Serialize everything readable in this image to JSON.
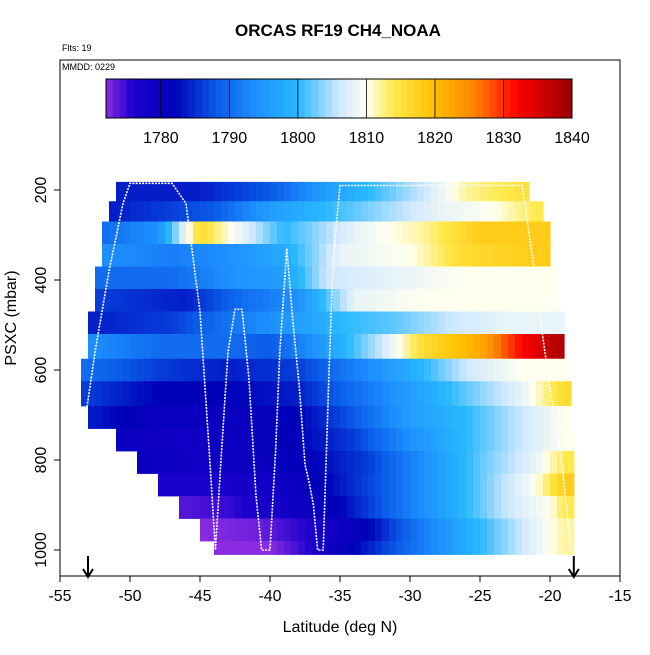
{
  "chart_data": {
    "type": "heatmap",
    "title": "ORCAS RF19 CH4_NOAA",
    "corner_labels": {
      "flights": "Flts: 19",
      "date": "MMDD: 0229"
    },
    "xlabel": "Latitude (deg N)",
    "ylabel": "PSXC (mbar)",
    "xlim": [
      -55,
      -15
    ],
    "ylim": [
      1010,
      100
    ],
    "x_ticks": [
      -55,
      -50,
      -45,
      -40,
      -35,
      -30,
      -25,
      -20,
      -15
    ],
    "y_ticks": [
      200,
      400,
      600,
      800,
      1000
    ],
    "colorbar": {
      "range": [
        1772,
        1840
      ],
      "ticks": [
        1780,
        1790,
        1800,
        1810,
        1820,
        1830,
        1840
      ],
      "stops": [
        {
          "v": 1772,
          "c": "#8a2be2"
        },
        {
          "v": 1776,
          "c": "#1a00cc"
        },
        {
          "v": 1782,
          "c": "#0000b8"
        },
        {
          "v": 1788,
          "c": "#0a5ae8"
        },
        {
          "v": 1794,
          "c": "#1e90ff"
        },
        {
          "v": 1800,
          "c": "#29b8ff"
        },
        {
          "v": 1806,
          "c": "#cfe8ff"
        },
        {
          "v": 1810,
          "c": "#fffff0"
        },
        {
          "v": 1814,
          "c": "#ffe84a"
        },
        {
          "v": 1820,
          "c": "#ffbf00"
        },
        {
          "v": 1826,
          "c": "#ff8000"
        },
        {
          "v": 1832,
          "c": "#ff0000"
        },
        {
          "v": 1840,
          "c": "#990000"
        }
      ]
    },
    "rows": [
      {
        "p1": 182,
        "p2": 225,
        "lat_min": -51,
        "lat_max": -21.5,
        "vals": [
          [
            -51,
            1784
          ],
          [
            -45,
            1784
          ],
          [
            -40,
            1788
          ],
          [
            -36,
            1796
          ],
          [
            -33,
            1800
          ],
          [
            -29,
            1806
          ],
          [
            -26,
            1812
          ],
          [
            -22,
            1815
          ]
        ]
      },
      {
        "p1": 225,
        "p2": 270,
        "lat_min": -51.5,
        "lat_max": -20.5,
        "vals": [
          [
            -51,
            1784
          ],
          [
            -44,
            1788
          ],
          [
            -40,
            1796
          ],
          [
            -36,
            1800
          ],
          [
            -32,
            1804
          ],
          [
            -28,
            1808
          ],
          [
            -24,
            1810
          ],
          [
            -21,
            1814
          ]
        ]
      },
      {
        "p1": 270,
        "p2": 320,
        "lat_min": -52,
        "lat_max": -20,
        "vals": [
          [
            -52,
            1790
          ],
          [
            -48,
            1794
          ],
          [
            -45,
            1816
          ],
          [
            -42,
            1808
          ],
          [
            -39,
            1800
          ],
          [
            -34,
            1808
          ],
          [
            -29,
            1812
          ],
          [
            -25,
            1818
          ],
          [
            -21,
            1818
          ]
        ]
      },
      {
        "p1": 320,
        "p2": 370,
        "lat_min": -52,
        "lat_max": -20,
        "vals": [
          [
            -52,
            1794
          ],
          [
            -47,
            1792
          ],
          [
            -43,
            1794
          ],
          [
            -39,
            1798
          ],
          [
            -35,
            1808
          ],
          [
            -30,
            1810
          ],
          [
            -26,
            1816
          ],
          [
            -21,
            1818
          ]
        ]
      },
      {
        "p1": 370,
        "p2": 420,
        "lat_min": -52.5,
        "lat_max": -19.5,
        "vals": [
          [
            -52,
            1790
          ],
          [
            -47,
            1790
          ],
          [
            -43,
            1794
          ],
          [
            -39,
            1796
          ],
          [
            -36,
            1806
          ],
          [
            -31,
            1808
          ],
          [
            -26,
            1810
          ],
          [
            -21,
            1810
          ]
        ]
      },
      {
        "p1": 420,
        "p2": 470,
        "lat_min": -52.5,
        "lat_max": -19.5,
        "vals": [
          [
            -52,
            1786
          ],
          [
            -46,
            1784
          ],
          [
            -42,
            1790
          ],
          [
            -38,
            1794
          ],
          [
            -34,
            1808
          ],
          [
            -29,
            1810
          ],
          [
            -25,
            1810
          ],
          [
            -21,
            1810
          ]
        ]
      },
      {
        "p1": 470,
        "p2": 520,
        "lat_min": -53,
        "lat_max": -19,
        "vals": [
          [
            -53,
            1784
          ],
          [
            -47,
            1786
          ],
          [
            -42,
            1792
          ],
          [
            -38,
            1796
          ],
          [
            -35,
            1800
          ],
          [
            -31,
            1802
          ],
          [
            -27,
            1806
          ],
          [
            -23,
            1808
          ],
          [
            -20,
            1808
          ]
        ]
      },
      {
        "p1": 520,
        "p2": 575,
        "lat_min": -53,
        "lat_max": -19,
        "vals": [
          [
            -53,
            1794
          ],
          [
            -48,
            1790
          ],
          [
            -43,
            1790
          ],
          [
            -40,
            1788
          ],
          [
            -36,
            1796
          ],
          [
            -32,
            1806
          ],
          [
            -29,
            1816
          ],
          [
            -25,
            1822
          ],
          [
            -22,
            1832
          ],
          [
            -19.5,
            1838
          ]
        ]
      },
      {
        "p1": 575,
        "p2": 625,
        "lat_min": -53.5,
        "lat_max": -18.5,
        "vals": [
          [
            -53,
            1790
          ],
          [
            -48,
            1786
          ],
          [
            -43,
            1784
          ],
          [
            -38,
            1786
          ],
          [
            -34,
            1792
          ],
          [
            -30,
            1798
          ],
          [
            -26,
            1806
          ],
          [
            -22,
            1810
          ],
          [
            -19,
            1810
          ]
        ]
      },
      {
        "p1": 625,
        "p2": 680,
        "lat_min": -53.5,
        "lat_max": -18.5,
        "vals": [
          [
            -53,
            1786
          ],
          [
            -48,
            1782
          ],
          [
            -43,
            1782
          ],
          [
            -38,
            1784
          ],
          [
            -34,
            1790
          ],
          [
            -30,
            1796
          ],
          [
            -26,
            1802
          ],
          [
            -22,
            1808
          ],
          [
            -19,
            1816
          ]
        ]
      },
      {
        "p1": 680,
        "p2": 730,
        "lat_min": -53,
        "lat_max": -18.5,
        "vals": [
          [
            -53,
            1784
          ],
          [
            -48,
            1780
          ],
          [
            -43,
            1780
          ],
          [
            -38,
            1782
          ],
          [
            -34,
            1788
          ],
          [
            -30,
            1796
          ],
          [
            -26,
            1800
          ],
          [
            -22,
            1806
          ],
          [
            -19,
            1810
          ]
        ]
      },
      {
        "p1": 730,
        "p2": 780,
        "lat_min": -51,
        "lat_max": -18.3,
        "vals": [
          [
            -51,
            1780
          ],
          [
            -46,
            1778
          ],
          [
            -42,
            1780
          ],
          [
            -38,
            1782
          ],
          [
            -34,
            1786
          ],
          [
            -30,
            1794
          ],
          [
            -26,
            1800
          ],
          [
            -22,
            1806
          ],
          [
            -19,
            1810
          ]
        ]
      },
      {
        "p1": 780,
        "p2": 830,
        "lat_min": -49.5,
        "lat_max": -18.3,
        "vals": [
          [
            -49,
            1780
          ],
          [
            -45,
            1778
          ],
          [
            -41,
            1780
          ],
          [
            -37,
            1782
          ],
          [
            -33,
            1786
          ],
          [
            -29,
            1794
          ],
          [
            -25,
            1802
          ],
          [
            -21,
            1808
          ],
          [
            -19,
            1814
          ]
        ]
      },
      {
        "p1": 830,
        "p2": 880,
        "lat_min": -48,
        "lat_max": -18.3,
        "vals": [
          [
            -48,
            1776
          ],
          [
            -44,
            1776
          ],
          [
            -40,
            1778
          ],
          [
            -36,
            1782
          ],
          [
            -32,
            1788
          ],
          [
            -28,
            1796
          ],
          [
            -24,
            1804
          ],
          [
            -21,
            1810
          ],
          [
            -19,
            1818
          ]
        ]
      },
      {
        "p1": 880,
        "p2": 930,
        "lat_min": -46.5,
        "lat_max": -18.3,
        "vals": [
          [
            -46,
            1774
          ],
          [
            -43,
            1775
          ],
          [
            -39,
            1778
          ],
          [
            -35,
            1782
          ],
          [
            -31,
            1790
          ],
          [
            -27,
            1798
          ],
          [
            -23,
            1806
          ],
          [
            -20,
            1810
          ],
          [
            -19,
            1814
          ]
        ]
      },
      {
        "p1": 930,
        "p2": 980,
        "lat_min": -45,
        "lat_max": -18.3,
        "vals": [
          [
            -45,
            1772
          ],
          [
            -41,
            1773
          ],
          [
            -37,
            1776
          ],
          [
            -33,
            1782
          ],
          [
            -29,
            1792
          ],
          [
            -25,
            1800
          ],
          [
            -22,
            1806
          ],
          [
            -19,
            1812
          ]
        ]
      },
      {
        "p1": 980,
        "p2": 1010,
        "lat_min": -44,
        "lat_max": -18.3,
        "vals": [
          [
            -44,
            1772
          ],
          [
            -40,
            1772
          ],
          [
            -37,
            1776
          ],
          [
            -34,
            1782
          ],
          [
            -30,
            1790
          ],
          [
            -26,
            1798
          ],
          [
            -22,
            1806
          ],
          [
            -19,
            1812
          ]
        ]
      }
    ],
    "flight_track": [
      [
        -53.2,
        710
      ],
      [
        -52.5,
        560
      ],
      [
        -51.5,
        380
      ],
      [
        -50.5,
        230
      ],
      [
        -50,
        185
      ],
      [
        -47,
        185
      ],
      [
        -46,
        230
      ],
      [
        -45,
        470
      ],
      [
        -44.3,
        800
      ],
      [
        -43.9,
        1000
      ],
      [
        -43.5,
        800
      ],
      [
        -43,
        560
      ],
      [
        -42.5,
        465
      ],
      [
        -42,
        465
      ],
      [
        -41.5,
        620
      ],
      [
        -41,
        880
      ],
      [
        -40.6,
        1000
      ],
      [
        -40,
        1000
      ],
      [
        -39.6,
        780
      ],
      [
        -39.3,
        560
      ],
      [
        -38.8,
        330
      ],
      [
        -38.4,
        480
      ],
      [
        -37.9,
        640
      ],
      [
        -37.5,
        810
      ],
      [
        -37.2,
        850
      ],
      [
        -36.9,
        900
      ],
      [
        -36.6,
        1000
      ],
      [
        -36.2,
        1000
      ],
      [
        -35.8,
        620
      ],
      [
        -35.5,
        360
      ],
      [
        -35,
        190
      ],
      [
        -22,
        190
      ],
      [
        -21.2,
        360
      ],
      [
        -20.5,
        530
      ],
      [
        -19.8,
        680
      ],
      [
        -19.1,
        820
      ],
      [
        -18.5,
        1000
      ]
    ],
    "markers": [
      -53,
      -18.3
    ]
  }
}
